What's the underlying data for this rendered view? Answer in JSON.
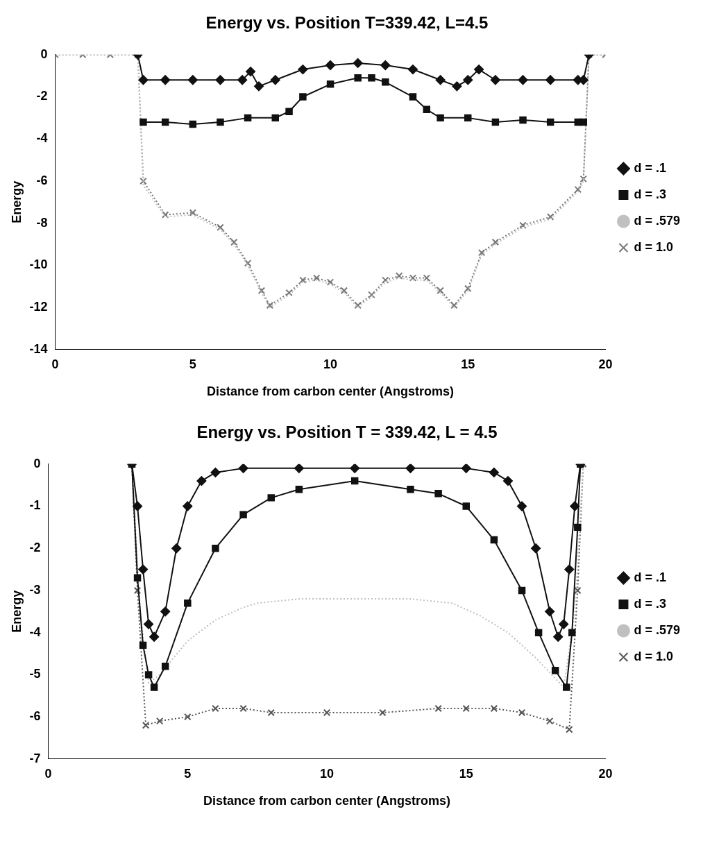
{
  "chart_data": [
    {
      "type": "line",
      "title": "Energy vs. Position T=339.42, L=4.5",
      "xlabel": "Distance from carbon center (Angstroms)",
      "ylabel": "Energy",
      "xlim": [
        0,
        20
      ],
      "xticks": [
        0,
        5,
        10,
        15,
        20
      ],
      "ylim": [
        -14,
        0
      ],
      "yticks": [
        -14,
        -12,
        -10,
        -8,
        -6,
        -4,
        -2,
        0
      ],
      "grid": false,
      "legend": "right",
      "series": [
        {
          "name": "d = .1",
          "color": "#111111",
          "marker": "diamond",
          "line_style": "solid",
          "x": [
            3,
            3.2,
            4,
            5,
            6,
            6.8,
            7.1,
            7.4,
            8,
            9,
            10,
            11,
            12,
            13,
            14,
            14.6,
            15.0,
            15.4,
            16,
            17,
            18,
            19,
            19.2,
            19.4
          ],
          "values": [
            0,
            -1.2,
            -1.2,
            -1.2,
            -1.2,
            -1.2,
            -0.8,
            -1.5,
            -1.2,
            -0.7,
            -0.5,
            -0.4,
            -0.5,
            -0.7,
            -1.2,
            -1.5,
            -1.2,
            -0.7,
            -1.2,
            -1.2,
            -1.2,
            -1.2,
            -1.2,
            0
          ]
        },
        {
          "name": "d = .3",
          "color": "#111111",
          "marker": "square",
          "line_style": "solid",
          "x": [
            3.2,
            4,
            5,
            6,
            7,
            8,
            8.5,
            9,
            10,
            11,
            11.5,
            12,
            13,
            13.5,
            14,
            15,
            16,
            17,
            18,
            19,
            19.2
          ],
          "values": [
            -3.2,
            -3.2,
            -3.3,
            -3.2,
            -3.0,
            -3.0,
            -2.7,
            -2.0,
            -1.4,
            -1.1,
            -1.1,
            -1.3,
            -2.0,
            -2.6,
            -3.0,
            -3.0,
            -3.2,
            -3.1,
            -3.2,
            -3.2,
            -3.2
          ]
        },
        {
          "name": "d = .579",
          "color": "#c0c0c0",
          "marker": "none",
          "line_style": "dotted",
          "x": [
            0,
            1,
            2,
            3,
            3.2,
            4,
            5,
            6,
            6.5,
            7,
            7.5,
            7.8,
            8.5,
            9,
            9.5,
            10,
            10.5,
            11,
            11.5,
            12,
            12.5,
            13,
            13.5,
            14,
            14.5,
            15,
            15.5,
            16,
            17,
            18,
            19,
            19.2,
            19.4,
            20
          ],
          "values": [
            0,
            0,
            0,
            0,
            -6.2,
            -7.7,
            -7.6,
            -8.3,
            -9.0,
            -10,
            -11.3,
            -12,
            -11.4,
            -10.8,
            -10.7,
            -10.9,
            -11.3,
            -12,
            -11.5,
            -10.8,
            -10.6,
            -10.7,
            -10.7,
            -11.3,
            -12,
            -11.2,
            -9.5,
            -9.0,
            -8.2,
            -7.8,
            -6.5,
            -6,
            0,
            0
          ]
        },
        {
          "name": "d = 1.0",
          "color": "#777777",
          "marker": "cross",
          "line_style": "dotted",
          "x": [
            0,
            1,
            2,
            3,
            3.2,
            4,
            5,
            6,
            6.5,
            7,
            7.5,
            7.8,
            8.5,
            9,
            9.5,
            10,
            10.5,
            11,
            11.5,
            12,
            12.5,
            13,
            13.5,
            14,
            14.5,
            15,
            15.5,
            16,
            17,
            18,
            19,
            19.2,
            19.4,
            20
          ],
          "values": [
            0,
            0,
            0,
            0,
            -6.0,
            -7.6,
            -7.5,
            -8.2,
            -8.9,
            -9.9,
            -11.2,
            -11.9,
            -11.3,
            -10.7,
            -10.6,
            -10.8,
            -11.2,
            -11.9,
            -11.4,
            -10.7,
            -10.5,
            -10.6,
            -10.6,
            -11.2,
            -11.9,
            -11.1,
            -9.4,
            -8.9,
            -8.1,
            -7.7,
            -6.4,
            -5.9,
            0,
            0
          ]
        }
      ]
    },
    {
      "type": "line",
      "title": "Energy vs. Position T = 339.42, L = 4.5",
      "xlabel": "Distance from carbon center (Angstroms)",
      "ylabel": "Energy",
      "xlim": [
        0,
        20
      ],
      "xticks": [
        0,
        5,
        10,
        15,
        20
      ],
      "ylim": [
        -7,
        0
      ],
      "yticks": [
        -7,
        -6,
        -5,
        -4,
        -3,
        -2,
        -1,
        0
      ],
      "grid": false,
      "legend": "right",
      "series": [
        {
          "name": "d = .1",
          "color": "#111111",
          "marker": "diamond",
          "line_style": "solid",
          "x": [
            3,
            3.2,
            3.4,
            3.6,
            3.8,
            4.2,
            4.6,
            5,
            5.5,
            6,
            7,
            9,
            11,
            13,
            15,
            16,
            16.5,
            17,
            17.5,
            18,
            18.3,
            18.5,
            18.7,
            18.9,
            19.1
          ],
          "values": [
            0,
            -1,
            -2.5,
            -3.8,
            -4.1,
            -3.5,
            -2,
            -1,
            -0.4,
            -0.2,
            -0.1,
            -0.1,
            -0.1,
            -0.1,
            -0.1,
            -0.2,
            -0.4,
            -1,
            -2,
            -3.5,
            -4.1,
            -3.8,
            -2.5,
            -1,
            0
          ]
        },
        {
          "name": "d = .3",
          "color": "#111111",
          "marker": "square",
          "line_style": "solid",
          "x": [
            3,
            3.2,
            3.4,
            3.6,
            3.8,
            4.2,
            5,
            6,
            7,
            8,
            9,
            11,
            13,
            14,
            15,
            16,
            17,
            17.6,
            18.2,
            18.6,
            18.8,
            19,
            19.1
          ],
          "values": [
            0,
            -2.7,
            -4.3,
            -5.0,
            -5.3,
            -4.8,
            -3.3,
            -2.0,
            -1.2,
            -0.8,
            -0.6,
            -0.4,
            -0.6,
            -0.7,
            -1.0,
            -1.8,
            -3.0,
            -4.0,
            -4.9,
            -5.3,
            -4,
            -1.5,
            0
          ]
        },
        {
          "name": "d = .579",
          "color": "#c0c0c0",
          "marker": "none",
          "line_style": "dotted",
          "x": [
            3,
            3.3,
            3.6,
            4,
            4.5,
            5,
            6,
            7,
            7.5,
            9,
            11,
            13,
            14.5,
            15.5,
            16.5,
            17.5,
            18.5,
            18.9,
            19.2
          ],
          "values": [
            0,
            -3.5,
            -5.2,
            -5.0,
            -4.6,
            -4.2,
            -3.7,
            -3.4,
            -3.3,
            -3.2,
            -3.2,
            -3.2,
            -3.3,
            -3.6,
            -4.0,
            -4.6,
            -5.3,
            -3.5,
            0
          ]
        },
        {
          "name": "d = 1.0",
          "color": "#555555",
          "marker": "cross",
          "line_style": "dotted",
          "x": [
            3,
            3.2,
            3.5,
            4,
            5,
            6,
            7,
            8,
            10,
            12,
            14,
            15,
            16,
            17,
            18,
            18.7,
            19,
            19.2
          ],
          "values": [
            0,
            -3,
            -6.2,
            -6.1,
            -6.0,
            -5.8,
            -5.8,
            -5.9,
            -5.9,
            -5.9,
            -5.8,
            -5.8,
            -5.8,
            -5.9,
            -6.1,
            -6.3,
            -3,
            0
          ]
        }
      ]
    }
  ]
}
